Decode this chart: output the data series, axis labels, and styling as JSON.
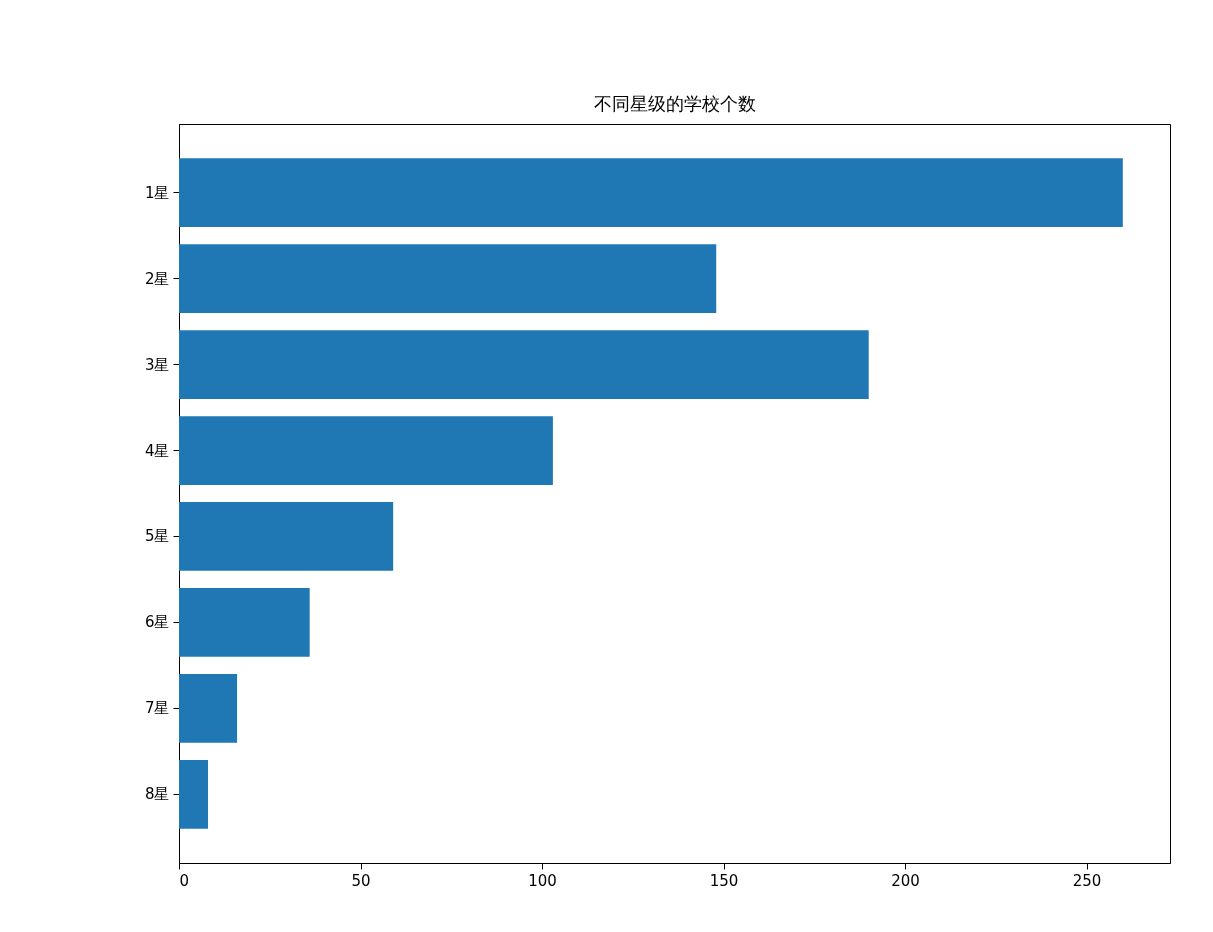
{
  "chart_data": {
    "type": "bar",
    "orientation": "horizontal",
    "title": "不同星级的学校个数",
    "categories": [
      "1星",
      "2星",
      "3星",
      "4星",
      "5星",
      "6星",
      "7星",
      "8星"
    ],
    "values": [
      260,
      148,
      190,
      103,
      59,
      36,
      16,
      8
    ],
    "color": "#1f77b4",
    "xlim": [
      0,
      273
    ],
    "xticks": [
      0,
      50,
      100,
      150,
      200,
      250
    ],
    "grid": false
  }
}
